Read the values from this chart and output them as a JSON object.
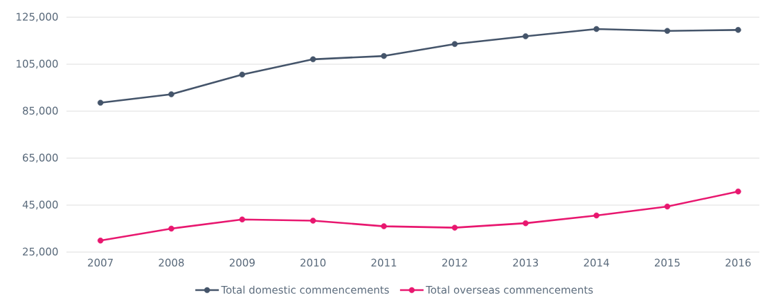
{
  "chart_data": {
    "type": "line",
    "categories": [
      "2007",
      "2008",
      "2009",
      "2010",
      "2011",
      "2012",
      "2013",
      "2014",
      "2015",
      "2016"
    ],
    "series": [
      {
        "name": "Total domestic commencements",
        "color": "#44546a",
        "values": [
          88600,
          92200,
          100600,
          107100,
          108500,
          113600,
          116900,
          120000,
          119200,
          119600
        ]
      },
      {
        "name": "Total overseas commencements",
        "color": "#e8176f",
        "values": [
          29900,
          35000,
          38900,
          38400,
          36000,
          35400,
          37300,
          40600,
          44400,
          50800
        ]
      }
    ],
    "ylim": [
      25000,
      125000
    ],
    "yticks": [
      {
        "value": 25000,
        "label": "25,000"
      },
      {
        "value": 45000,
        "label": "45,000"
      },
      {
        "value": 65000,
        "label": "65,000"
      },
      {
        "value": 85000,
        "label": "85,000"
      },
      {
        "value": 105000,
        "label": "105,000"
      },
      {
        "value": 125000,
        "label": "125,000"
      }
    ],
    "grid": "y",
    "legend": "bottom",
    "marker": "circle",
    "line_style": "solid"
  }
}
